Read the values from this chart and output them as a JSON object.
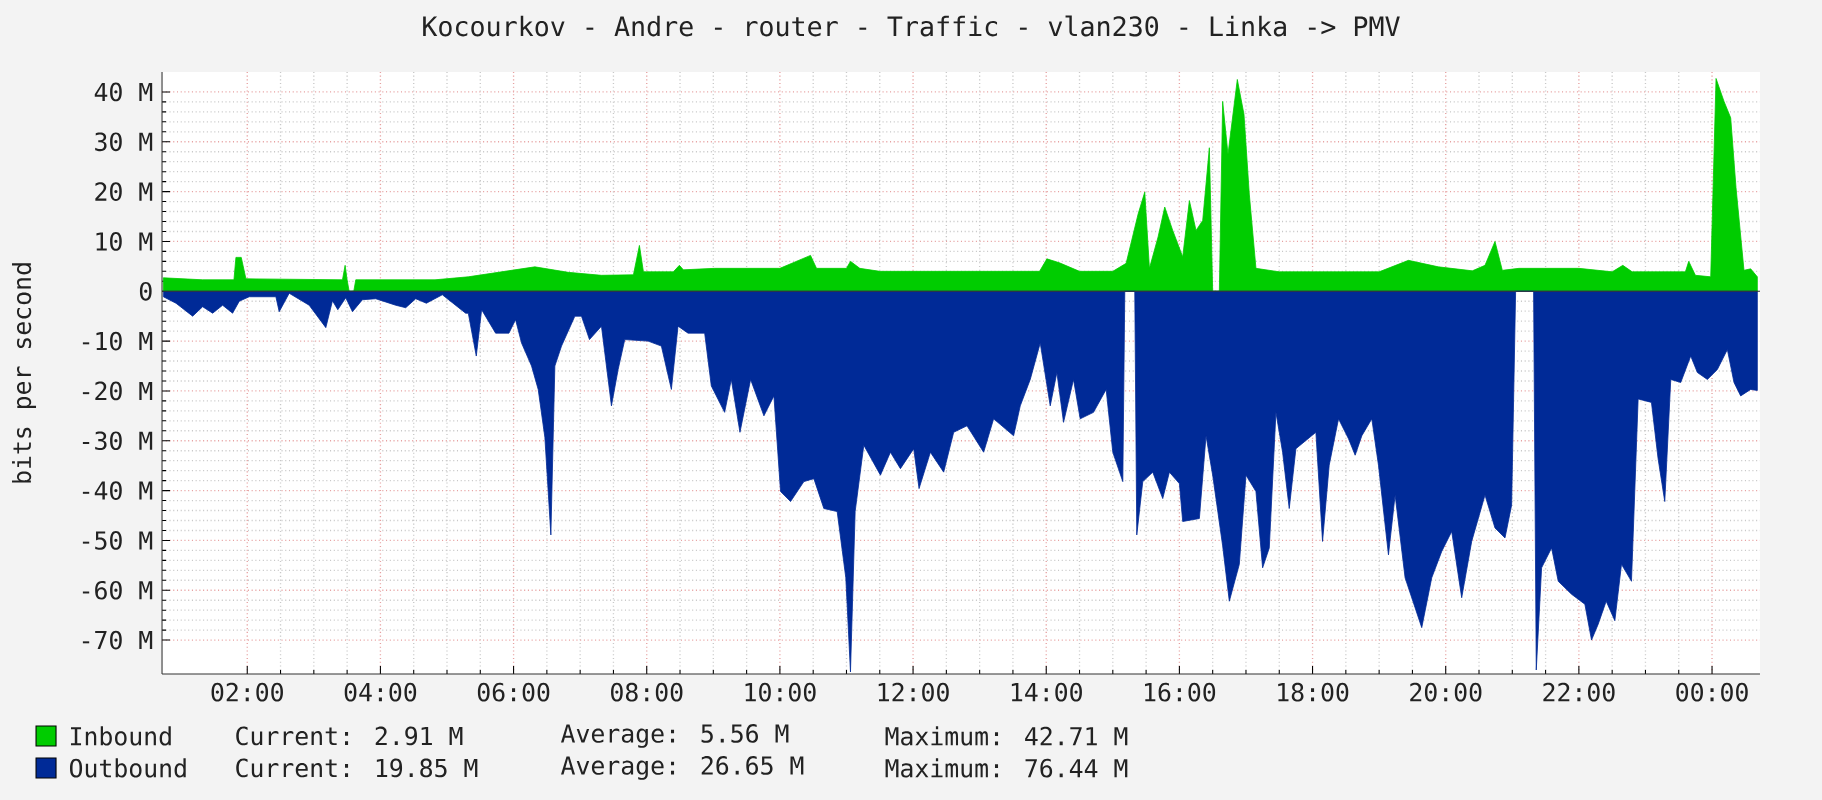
{
  "chart_data": {
    "type": "area",
    "title": "Kocourkov - Andre - router - Traffic - vlan230 - Linka -> PMV",
    "ylabel": "bits per second",
    "xlim": [
      0.72,
      24.72
    ],
    "ylim": [
      -76.8,
      44
    ],
    "xticks": [
      {
        "value": 2,
        "label": "02:00"
      },
      {
        "value": 4,
        "label": "04:00"
      },
      {
        "value": 6,
        "label": "06:00"
      },
      {
        "value": 8,
        "label": "08:00"
      },
      {
        "value": 10,
        "label": "10:00"
      },
      {
        "value": 12,
        "label": "12:00"
      },
      {
        "value": 14,
        "label": "14:00"
      },
      {
        "value": 16,
        "label": "16:00"
      },
      {
        "value": 18,
        "label": "18:00"
      },
      {
        "value": 20,
        "label": "20:00"
      },
      {
        "value": 22,
        "label": "22:00"
      },
      {
        "value": 24,
        "label": "00:00"
      }
    ],
    "yticks": [
      {
        "value": -70,
        "label": "-70 M"
      },
      {
        "value": -60,
        "label": "-60 M"
      },
      {
        "value": -50,
        "label": "-50 M"
      },
      {
        "value": -40,
        "label": "-40 M"
      },
      {
        "value": -30,
        "label": "-30 M"
      },
      {
        "value": -20,
        "label": "-20 M"
      },
      {
        "value": -10,
        "label": "-10 M"
      },
      0,
      {
        "value": 10,
        "label": "10 M"
      },
      {
        "value": 20,
        "label": "20 M"
      },
      {
        "value": 30,
        "label": "30 M"
      },
      {
        "value": 40,
        "label": "40 M"
      }
    ],
    "grid": true,
    "legend": "bottom",
    "annotations": [
      "Current: 2.91 M",
      "Average: 5.56 M",
      "Maximum: 42.71 M",
      "Current: 19.85 M",
      "Average: 26.65 M",
      "Maximum: 76.44 M"
    ],
    "series": [
      {
        "name": "Inbound",
        "color": "#00cc00",
        "x": [
          0.74,
          1.33,
          1.8,
          1.83,
          1.91,
          1.98,
          3.43,
          3.47,
          3.5,
          3.53,
          3.6,
          3.63,
          4.82,
          5.32,
          6.32,
          6.82,
          7.32,
          7.8,
          7.89,
          7.95,
          8.4,
          8.49,
          8.55,
          9.02,
          10.0,
          10.46,
          10.55,
          11.0,
          11.06,
          11.2,
          11.5,
          13.9,
          14.01,
          14.2,
          14.5,
          15.0,
          15.2,
          15.38,
          15.48,
          15.55,
          15.68,
          15.78,
          15.9,
          16.05,
          16.15,
          16.25,
          16.35,
          16.45,
          16.5,
          16.6,
          16.65,
          16.73,
          16.87,
          16.97,
          17.05,
          17.15,
          17.5,
          19.0,
          19.44,
          19.89,
          20.4,
          20.59,
          20.74,
          20.85,
          21.1,
          22.0,
          22.5,
          22.66,
          22.8,
          23.6,
          23.65,
          23.75,
          23.98,
          24.06,
          24.18,
          24.28,
          24.36,
          24.48,
          24.58,
          24.68
        ],
        "values": [
          2.7,
          2.3,
          2.3,
          6.8,
          6.8,
          2.5,
          2.3,
          5.2,
          2.3,
          0,
          0,
          2.3,
          2.3,
          2.9,
          4.9,
          3.8,
          3.2,
          3.3,
          9.2,
          3.9,
          3.9,
          5.2,
          4.3,
          4.6,
          4.6,
          7.2,
          4.6,
          4.6,
          6.0,
          4.6,
          4.0,
          4.0,
          6.5,
          5.7,
          4.0,
          4.0,
          5.6,
          15.5,
          19.9,
          4.6,
          10.9,
          16.9,
          12.2,
          6.9,
          18.2,
          12.2,
          14.2,
          28.8,
          0,
          0,
          38.1,
          27.5,
          42.5,
          35.5,
          19.5,
          4.6,
          3.9,
          3.9,
          6.2,
          4.9,
          4.1,
          5.2,
          10.0,
          4.2,
          4.6,
          4.6,
          3.9,
          5.2,
          3.9,
          3.9,
          6.0,
          3.2,
          2.9,
          42.7,
          38.1,
          34.8,
          20.8,
          4.2,
          4.5,
          2.9
        ]
      },
      {
        "name": "Outbound",
        "color": "#002a97",
        "x": [
          0.74,
          0.93,
          1.18,
          1.33,
          1.48,
          1.63,
          1.78,
          1.88,
          2.03,
          2.43,
          2.48,
          2.63,
          2.93,
          3.18,
          3.28,
          3.36,
          3.48,
          3.58,
          3.73,
          3.93,
          4.23,
          4.38,
          4.53,
          4.69,
          4.93,
          5.28,
          5.32,
          5.44,
          5.52,
          5.73,
          5.93,
          6.03,
          6.12,
          6.27,
          6.37,
          6.47,
          6.56,
          6.62,
          6.72,
          6.92,
          7.02,
          7.14,
          7.32,
          7.47,
          7.57,
          7.67,
          8.02,
          8.22,
          8.37,
          8.47,
          8.62,
          8.87,
          8.97,
          9.17,
          9.27,
          9.4,
          9.56,
          9.76,
          9.91,
          10.01,
          10.16,
          10.36,
          10.51,
          10.66,
          10.86,
          10.99,
          11.06,
          11.13,
          11.26,
          11.51,
          11.66,
          11.81,
          12.01,
          12.09,
          12.26,
          12.46,
          12.61,
          12.81,
          13.06,
          13.21,
          13.51,
          13.61,
          13.76,
          13.91,
          14.06,
          14.16,
          14.26,
          14.41,
          14.51,
          14.71,
          14.9,
          15.0,
          15.15,
          15.18,
          15.33,
          15.36,
          15.45,
          15.6,
          15.75,
          15.85,
          16.0,
          16.05,
          16.3,
          16.4,
          16.5,
          16.65,
          16.75,
          16.9,
          17.0,
          17.15,
          17.25,
          17.35,
          17.45,
          17.55,
          17.65,
          17.75,
          18.05,
          18.15,
          18.25,
          18.39,
          18.54,
          18.64,
          18.74,
          18.89,
          18.99,
          19.14,
          19.24,
          19.39,
          19.54,
          19.64,
          19.79,
          19.94,
          20.09,
          20.24,
          20.39,
          20.59,
          20.74,
          20.89,
          20.99,
          21.05,
          21.32,
          21.36,
          21.44,
          21.59,
          21.69,
          21.89,
          22.09,
          22.19,
          22.29,
          22.41,
          22.54,
          22.64,
          22.79,
          22.89,
          23.09,
          23.19,
          23.29,
          23.38,
          23.53,
          23.68,
          23.78,
          23.93,
          24.08,
          24.23,
          24.33,
          24.43,
          24.58,
          24.68
        ],
        "values": [
          -1.1,
          -2.4,
          -5.0,
          -3.1,
          -4.4,
          -2.8,
          -4.4,
          -2.0,
          -1.1,
          -1.1,
          -4.1,
          -0.4,
          -2.8,
          -7.3,
          -1.9,
          -3.7,
          -1.3,
          -4.1,
          -1.7,
          -1.5,
          -2.8,
          -3.3,
          -1.5,
          -2.4,
          -0.7,
          -4.4,
          -4.4,
          -13.0,
          -3.7,
          -8.4,
          -8.4,
          -5.7,
          -10.4,
          -15.0,
          -19.7,
          -29.3,
          -48.9,
          -15.0,
          -11.0,
          -5.0,
          -5.0,
          -9.7,
          -7.0,
          -23.0,
          -15.7,
          -9.7,
          -10.0,
          -11.0,
          -19.7,
          -7.0,
          -8.4,
          -8.4,
          -19.0,
          -24.3,
          -17.7,
          -28.3,
          -17.7,
          -25.0,
          -21.0,
          -40.2,
          -42.2,
          -38.2,
          -37.6,
          -43.6,
          -44.2,
          -57.5,
          -76.4,
          -44.2,
          -30.9,
          -36.9,
          -32.3,
          -35.6,
          -31.6,
          -39.6,
          -32.3,
          -36.3,
          -28.3,
          -27.0,
          -32.3,
          -25.6,
          -29.0,
          -23.0,
          -17.7,
          -10.4,
          -23.0,
          -16.3,
          -26.3,
          -17.7,
          -25.6,
          -24.3,
          -19.7,
          -32.3,
          -38.2,
          0,
          0,
          -48.9,
          -38.2,
          -36.3,
          -41.6,
          -36.3,
          -38.6,
          -46.2,
          -45.6,
          -29.0,
          -36.9,
          -51.1,
          -62.2,
          -54.8,
          -36.9,
          -40.2,
          -55.5,
          -51.5,
          -24.3,
          -32.3,
          -43.6,
          -31.6,
          -28.3,
          -50.2,
          -34.9,
          -25.6,
          -29.6,
          -32.9,
          -29.0,
          -25.6,
          -34.9,
          -52.9,
          -40.9,
          -57.5,
          -63.5,
          -67.5,
          -57.5,
          -52.2,
          -48.2,
          -61.5,
          -50.2,
          -40.9,
          -47.5,
          -49.5,
          -42.9,
          0,
          0,
          -76.0,
          -55.5,
          -51.5,
          -58.2,
          -60.8,
          -62.8,
          -70.0,
          -66.8,
          -62.2,
          -66.1,
          -54.8,
          -58.2,
          -21.6,
          -22.3,
          -33.6,
          -42.2,
          -17.7,
          -18.3,
          -13.0,
          -16.3,
          -17.7,
          -15.7,
          -11.7,
          -18.3,
          -21.0,
          -19.7,
          -19.9
        ]
      }
    ]
  }
}
